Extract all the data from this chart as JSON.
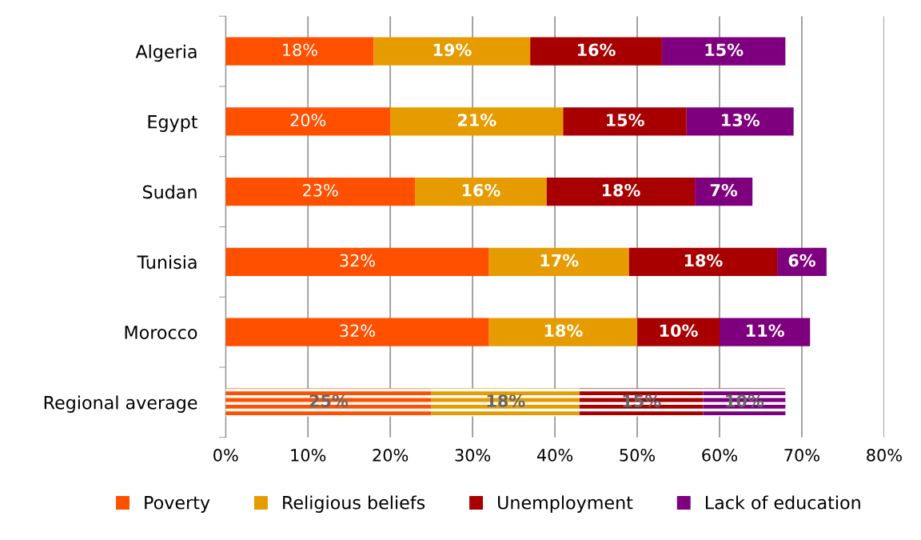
{
  "chart_data": {
    "type": "bar",
    "orientation": "horizontal",
    "stacked": true,
    "categories": [
      "Algeria",
      "Egypt",
      "Sudan",
      "Tunisia",
      "Morocco",
      "Regional average"
    ],
    "series": [
      {
        "name": "Poverty",
        "color": "#ff5000",
        "values": [
          18,
          20,
          23,
          32,
          32,
          25
        ],
        "value_labels": [
          "18%",
          "20%",
          "23%",
          "32%",
          "32%",
          "25%"
        ]
      },
      {
        "name": "Religious beliefs",
        "color": "#e69c00",
        "values": [
          19,
          21,
          16,
          17,
          18,
          18
        ],
        "value_labels": [
          "19%",
          "21%",
          "16%",
          "17%",
          "18%",
          "18%"
        ]
      },
      {
        "name": "Unemployment",
        "color": "#a80000",
        "values": [
          16,
          15,
          18,
          18,
          10,
          15
        ],
        "value_labels": [
          "16%",
          "15%",
          "18%",
          "18%",
          "10%",
          "15%"
        ]
      },
      {
        "name": "Lack of education",
        "color": "#7f007f",
        "values": [
          15,
          13,
          7,
          6,
          11,
          10
        ],
        "value_labels": [
          "15%",
          "13%",
          "7%",
          "6%",
          "11%",
          "10%"
        ]
      }
    ],
    "xlim": [
      0,
      80
    ],
    "xticks": [
      {
        "value": 0,
        "label": "0%"
      },
      {
        "value": 10,
        "label": "10%"
      },
      {
        "value": 20,
        "label": "20%"
      },
      {
        "value": 30,
        "label": "30%"
      },
      {
        "value": 40,
        "label": "40%"
      },
      {
        "value": 50,
        "label": "50%"
      },
      {
        "value": 60,
        "label": "60%"
      },
      {
        "value": 70,
        "label": "70%"
      },
      {
        "value": 80,
        "label": "80%"
      }
    ],
    "grid": "x",
    "legend": "bottom"
  }
}
